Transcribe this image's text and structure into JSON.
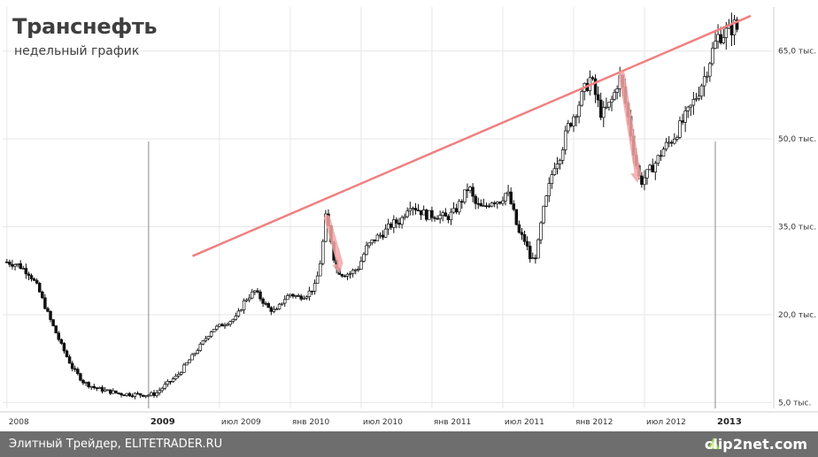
{
  "header": {
    "title": "Транснефть",
    "subtitle": "недельный график"
  },
  "footer": {
    "left_text": "Элитный Трейдер, ELITETRADER.RU",
    "brand": "clip2net.com"
  },
  "chart_data": {
    "type": "candlestick",
    "title": "Транснефть",
    "subtitle": "недельный график",
    "y_ticks": [
      {
        "value": 5000,
        "label": "5,0 тыс."
      },
      {
        "value": 20000,
        "label": "20,0 тыс."
      },
      {
        "value": 35000,
        "label": "35,0 тыс."
      },
      {
        "value": 50000,
        "label": "50,0 тыс."
      },
      {
        "value": 65000,
        "label": "65,0 тыс."
      }
    ],
    "x_ticks": [
      {
        "value": 2008.0,
        "label": "2008",
        "bold": false
      },
      {
        "value": 2009.0,
        "label": "2009",
        "bold": true
      },
      {
        "value": 2009.5,
        "label": "июл 2009",
        "bold": false
      },
      {
        "value": 2010.0,
        "label": "янв 2010",
        "bold": false
      },
      {
        "value": 2010.5,
        "label": "июл 2010",
        "bold": false
      },
      {
        "value": 2011.0,
        "label": "янв 2011",
        "bold": false
      },
      {
        "value": 2011.5,
        "label": "июл 2011",
        "bold": false
      },
      {
        "value": 2012.0,
        "label": "янв 2012",
        "bold": false
      },
      {
        "value": 2012.5,
        "label": "июл 2012",
        "bold": false
      },
      {
        "value": 2013.0,
        "label": "2013",
        "bold": true
      }
    ],
    "xlim": [
      2007.97,
      2013.4
    ],
    "ylim": [
      4000,
      72500
    ],
    "grid": true,
    "price_path": [
      [
        2008.0,
        29000
      ],
      [
        2008.08,
        28500
      ],
      [
        2008.16,
        27000
      ],
      [
        2008.22,
        24500
      ],
      [
        2008.3,
        19500
      ],
      [
        2008.38,
        15000
      ],
      [
        2008.46,
        11000
      ],
      [
        2008.54,
        8500
      ],
      [
        2008.62,
        7500
      ],
      [
        2008.7,
        7000
      ],
      [
        2008.8,
        6500
      ],
      [
        2008.9,
        6400
      ],
      [
        2009.0,
        6300
      ],
      [
        2009.05,
        6500
      ],
      [
        2009.12,
        8000
      ],
      [
        2009.2,
        9500
      ],
      [
        2009.28,
        12000
      ],
      [
        2009.36,
        14500
      ],
      [
        2009.45,
        17500
      ],
      [
        2009.54,
        18500
      ],
      [
        2009.62,
        19500
      ],
      [
        2009.68,
        22500
      ],
      [
        2009.75,
        24000
      ],
      [
        2009.8,
        22500
      ],
      [
        2009.85,
        21000
      ],
      [
        2009.9,
        20500
      ],
      [
        2009.95,
        22500
      ],
      [
        2010.0,
        23500
      ],
      [
        2010.06,
        23000
      ],
      [
        2010.12,
        23500
      ],
      [
        2010.18,
        25000
      ],
      [
        2010.22,
        30000
      ],
      [
        2010.25,
        36500
      ],
      [
        2010.28,
        34000
      ],
      [
        2010.32,
        28000
      ],
      [
        2010.36,
        27000
      ],
      [
        2010.42,
        27000
      ],
      [
        2010.48,
        28000
      ],
      [
        2010.54,
        31500
      ],
      [
        2010.6,
        33000
      ],
      [
        2010.66,
        34000
      ],
      [
        2010.72,
        35500
      ],
      [
        2010.78,
        36000
      ],
      [
        2010.84,
        39000
      ],
      [
        2010.9,
        38000
      ],
      [
        2010.96,
        37000
      ],
      [
        2011.04,
        37000
      ],
      [
        2011.1,
        36500
      ],
      [
        2011.16,
        37500
      ],
      [
        2011.22,
        40000
      ],
      [
        2011.26,
        42000
      ],
      [
        2011.3,
        39000
      ],
      [
        2011.36,
        38000
      ],
      [
        2011.42,
        39500
      ],
      [
        2011.48,
        39500
      ],
      [
        2011.53,
        41000
      ],
      [
        2011.57,
        38000
      ],
      [
        2011.61,
        34000
      ],
      [
        2011.66,
        32500
      ],
      [
        2011.7,
        29000
      ],
      [
        2011.74,
        30500
      ],
      [
        2011.78,
        37000
      ],
      [
        2011.82,
        41000
      ],
      [
        2011.86,
        45500
      ],
      [
        2011.9,
        47000
      ],
      [
        2011.96,
        52000
      ],
      [
        2012.02,
        55000
      ],
      [
        2012.08,
        58500
      ],
      [
        2012.12,
        60500
      ],
      [
        2012.16,
        57000
      ],
      [
        2012.2,
        54000
      ],
      [
        2012.26,
        56000
      ],
      [
        2012.3,
        58500
      ],
      [
        2012.32,
        61000
      ],
      [
        2012.35,
        58000
      ],
      [
        2012.39,
        53000
      ],
      [
        2012.43,
        47000
      ],
      [
        2012.47,
        42500
      ],
      [
        2012.52,
        44000
      ],
      [
        2012.58,
        46000
      ],
      [
        2012.64,
        48500
      ],
      [
        2012.7,
        50000
      ],
      [
        2012.76,
        52500
      ],
      [
        2012.82,
        55000
      ],
      [
        2012.88,
        58000
      ],
      [
        2012.93,
        61000
      ],
      [
        2012.98,
        65000
      ],
      [
        2013.02,
        67500
      ],
      [
        2013.06,
        68000
      ],
      [
        2013.1,
        68500
      ],
      [
        2013.14,
        69500
      ],
      [
        2013.17,
        68000
      ]
    ],
    "annotations": {
      "trendline": {
        "from": [
          2009.31,
          30000
        ],
        "to": [
          2013.25,
          71000
        ],
        "color": "#f08080"
      },
      "arrows": [
        {
          "from": [
            2010.26,
            36500
          ],
          "to": [
            2010.35,
            27000
          ],
          "color": "#f4a6a6"
        },
        {
          "from": [
            2012.34,
            61000
          ],
          "to": [
            2012.45,
            42500
          ],
          "color": "#f4a6a6"
        }
      ]
    }
  }
}
